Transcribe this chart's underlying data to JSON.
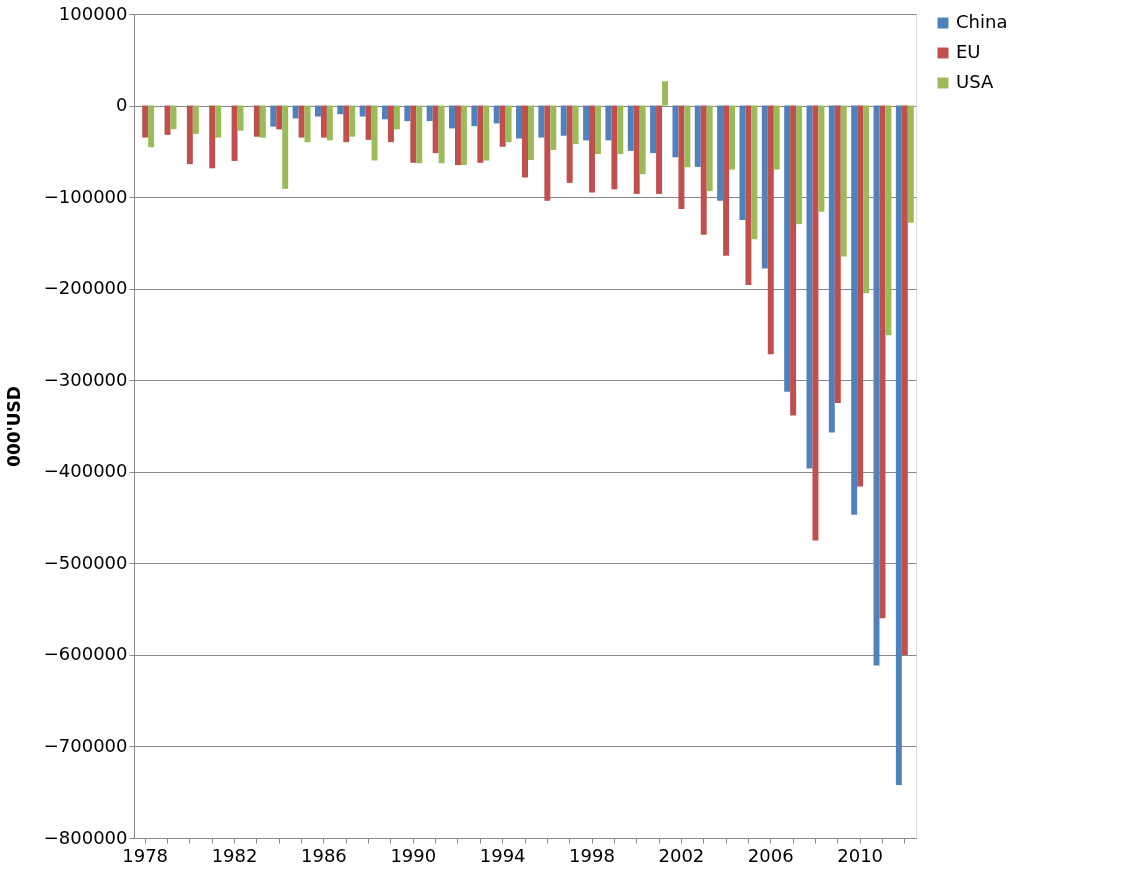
{
  "chart_data": {
    "type": "bar",
    "ylabel": "000'USD",
    "categories": [
      "1978",
      null,
      null,
      null,
      "1982",
      null,
      null,
      null,
      "1986",
      null,
      null,
      null,
      "1990",
      null,
      null,
      null,
      "1994",
      null,
      null,
      null,
      "1998",
      null,
      null,
      null,
      "2002",
      null,
      null,
      null,
      "2006",
      null,
      null,
      null,
      "2010",
      null,
      null
    ],
    "series": [
      {
        "name": "China",
        "color": "#4f81bd",
        "values": [
          null,
          null,
          null,
          null,
          null,
          null,
          -23000,
          -14000,
          -12000,
          -9500,
          -12000,
          -15000,
          -17000,
          -17000,
          -25000,
          -22500,
          -19500,
          -36000,
          -35000,
          -33000,
          -38000,
          -38000,
          -49500,
          -52000,
          -56500,
          -67000,
          -104000,
          -125000,
          -178000,
          -312500,
          -396500,
          -357000,
          -447000,
          -611500,
          -742000
        ]
      },
      {
        "name": "EU",
        "color": "#c0504d",
        "values": [
          -35000,
          -32000,
          -64000,
          -68500,
          -60500,
          -34000,
          -26000,
          -35000,
          -35000,
          -40000,
          -37500,
          -40000,
          -62500,
          -52000,
          -65000,
          -62500,
          -45000,
          -78500,
          -104000,
          -84500,
          -95000,
          -91500,
          -96500,
          -96500,
          -113000,
          -141000,
          -164000,
          -196000,
          -271500,
          -338500,
          -475000,
          -325000,
          -416000,
          -560000,
          -600000
        ]
      },
      {
        "name": "USA",
        "color": "#9bbb59",
        "values": [
          -45500,
          -25800,
          -31000,
          -35000,
          -27500,
          -35000,
          -91000,
          -40000,
          -38000,
          -34000,
          -60000,
          -26000,
          -63000,
          -63000,
          -65000,
          -60000,
          -40000,
          -59500,
          -48500,
          -42000,
          -53000,
          -53000,
          -75000,
          26500,
          -67500,
          -93500,
          -70000,
          -146000,
          -70000,
          -129500,
          -116000,
          -165000,
          -205000,
          -251000,
          -128000
        ]
      }
    ],
    "ylim": [
      -800000,
      100000
    ],
    "yticks": [
      -800000,
      -700000,
      -600000,
      -500000,
      -400000,
      -300000,
      -200000,
      -100000,
      0,
      100000
    ],
    "grid": "y",
    "legend": "right"
  }
}
